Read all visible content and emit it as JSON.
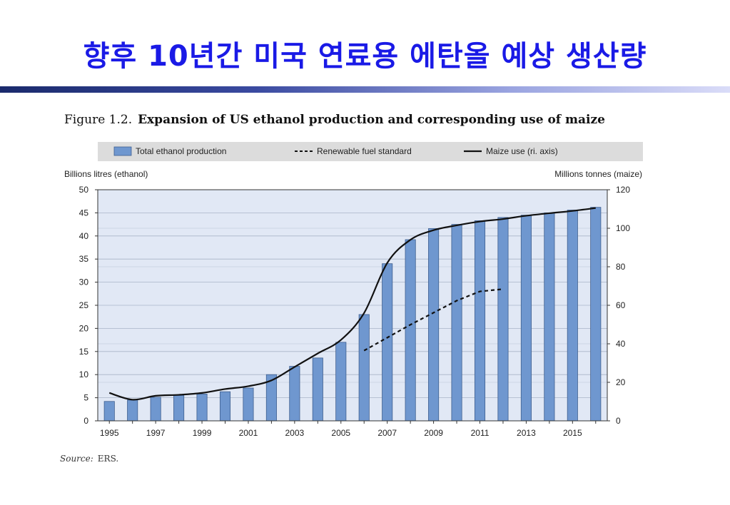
{
  "slide": {
    "title": "향후 10년간 미국 연료용 에탄올 예상 생산량"
  },
  "figure": {
    "number": "Figure 1.2.",
    "caption": "Expansion of US ethanol production and corresponding use of maize",
    "source_label": "Source:",
    "source_value": "ERS."
  },
  "chart_data": {
    "type": "bar",
    "x": [
      1995,
      1996,
      1997,
      1998,
      1999,
      2000,
      2001,
      2002,
      2003,
      2004,
      2005,
      2006,
      2007,
      2008,
      2009,
      2010,
      2011,
      2012,
      2013,
      2014,
      2015,
      2016
    ],
    "x_tick_labels": [
      "1995",
      "1997",
      "1999",
      "2001",
      "2003",
      "2005",
      "2007",
      "2009",
      "2011",
      "2013",
      "2015"
    ],
    "ylabel": "Billions litres (ethanol)",
    "y2label": "Millions tonnes (maize)",
    "ylim": [
      0,
      50
    ],
    "y2lim": [
      0,
      120
    ],
    "y_ticks": [
      0,
      5,
      10,
      15,
      20,
      25,
      30,
      35,
      40,
      45,
      50
    ],
    "y2_ticks": [
      0,
      20,
      40,
      60,
      80,
      100,
      120
    ],
    "grid": true,
    "legend_position": "top",
    "series": [
      {
        "name": "Total ethanol production",
        "kind": "bar",
        "axis": "left",
        "color": "#6f97cf",
        "values": [
          4.2,
          4.5,
          5.1,
          5.5,
          5.8,
          6.3,
          7.1,
          10.0,
          11.8,
          13.6,
          17.0,
          23.0,
          34.0,
          39.2,
          41.6,
          42.5,
          43.3,
          44.0,
          44.5,
          45.0,
          45.6,
          46.2
        ]
      },
      {
        "name": "Renewable fuel standard",
        "kind": "dashed-line",
        "axis": "left",
        "color": "#111111",
        "x": [
          2006,
          2007,
          2008,
          2009,
          2010,
          2011,
          2012
        ],
        "values": [
          15.2,
          18.0,
          20.8,
          23.4,
          26.0,
          28.0,
          28.5
        ]
      },
      {
        "name": "Maize use (ri. axis)",
        "kind": "line",
        "axis": "right",
        "color": "#111111",
        "values": [
          14.5,
          11.0,
          13.0,
          13.5,
          14.5,
          16.5,
          18.0,
          21.0,
          28.0,
          35.0,
          42.0,
          56.0,
          82.0,
          94.0,
          99.0,
          101.5,
          103.5,
          104.8,
          106.5,
          107.8,
          109.0,
          110.5
        ]
      }
    ]
  }
}
